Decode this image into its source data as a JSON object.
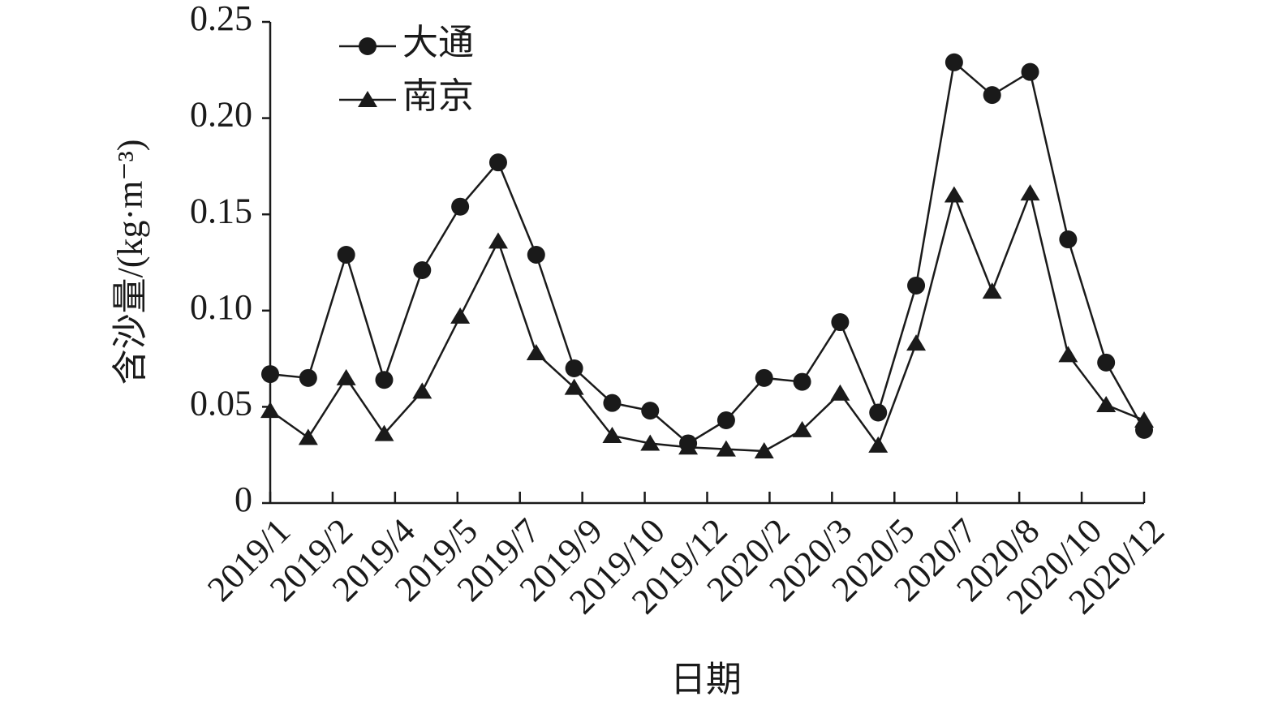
{
  "chart_data": {
    "type": "line",
    "x": [
      0,
      1,
      2,
      3,
      4,
      5,
      6,
      7,
      8,
      9,
      10,
      11,
      12,
      13,
      14,
      15,
      16,
      17,
      18,
      19,
      20,
      21,
      22,
      23
    ],
    "xlabel": "日期",
    "ylabel": "含沙量/(kg·m⁻³)",
    "xlim": [
      0,
      23
    ],
    "xticks": [
      {
        "value": 0,
        "label": "2019/1"
      },
      {
        "value": 1.642857,
        "label": "2019/2"
      },
      {
        "value": 3.285714,
        "label": "2019/4"
      },
      {
        "value": 4.928571,
        "label": "2019/5"
      },
      {
        "value": 6.571429,
        "label": "2019/7"
      },
      {
        "value": 8.214286,
        "label": "2019/9"
      },
      {
        "value": 9.857143,
        "label": "2019/10"
      },
      {
        "value": 11.5,
        "label": "2019/12"
      },
      {
        "value": 13.142857,
        "label": "2020/2"
      },
      {
        "value": 14.785714,
        "label": "2020/3"
      },
      {
        "value": 16.428571,
        "label": "2020/5"
      },
      {
        "value": 18.071429,
        "label": "2020/7"
      },
      {
        "value": 19.714286,
        "label": "2020/8"
      },
      {
        "value": 21.357143,
        "label": "2020/10"
      },
      {
        "value": 23,
        "label": "2020/12"
      }
    ],
    "ylim": [
      0,
      0.25
    ],
    "yticks": [
      0,
      0.05,
      {
        "value": 0.1,
        "label": "0.10"
      },
      0.15,
      {
        "value": 0.2,
        "label": "0.20"
      },
      0.25
    ],
    "legend": "upper left",
    "series": [
      {
        "name": "大通",
        "color": "#1a1a1a",
        "marker": "circle",
        "values": [
          0.067,
          0.065,
          0.129,
          0.064,
          0.121,
          0.154,
          0.177,
          0.129,
          0.07,
          0.052,
          0.048,
          0.031,
          0.043,
          0.065,
          0.063,
          0.094,
          0.047,
          0.113,
          0.229,
          0.212,
          0.224,
          0.137,
          0.073,
          0.038
        ]
      },
      {
        "name": "南京",
        "color": "#1a1a1a",
        "marker": "triangle",
        "values": [
          0.048,
          0.034,
          0.065,
          0.036,
          0.058,
          0.097,
          0.136,
          0.078,
          0.06,
          0.035,
          0.031,
          0.029,
          0.028,
          0.027,
          0.038,
          0.057,
          0.03,
          0.083,
          0.16,
          0.11,
          0.161,
          0.077,
          0.051,
          0.043
        ]
      }
    ]
  }
}
